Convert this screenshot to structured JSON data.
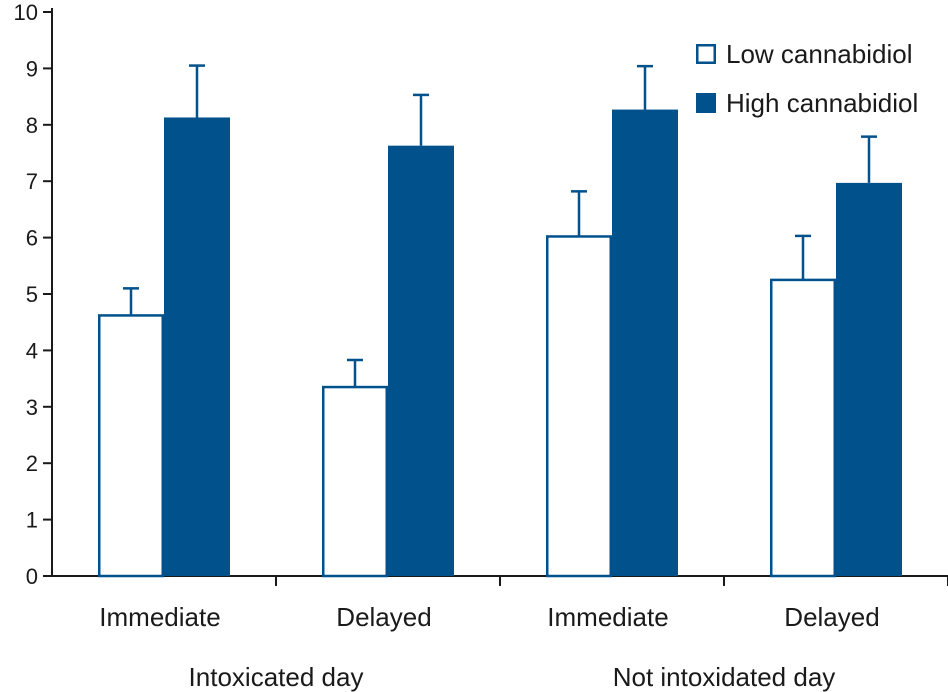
{
  "colors": {
    "dark": "#00518c",
    "axis": "#1a1a1a",
    "background": "#ffffff"
  },
  "chart_data": {
    "type": "bar",
    "title": "",
    "xlabel": "",
    "ylabel": "",
    "ylim": [
      0,
      10
    ],
    "yticks": [
      "0",
      "1",
      "2",
      "3",
      "4",
      "5",
      "6",
      "7",
      "8",
      "9",
      "10"
    ],
    "categories": [
      "Immediate",
      "Delayed",
      "Immediate",
      "Delayed"
    ],
    "groups": [
      {
        "label": "Intoxicated day",
        "category_indices": [
          0,
          1
        ]
      },
      {
        "label": "Not intoxidated day",
        "category_indices": [
          2,
          3
        ]
      }
    ],
    "series": [
      {
        "name": "Low cannabidiol",
        "style": "outline",
        "values": [
          4.62,
          3.35,
          6.02,
          5.25
        ],
        "errors": [
          0.48,
          0.48,
          0.8,
          0.78
        ]
      },
      {
        "name": "High cannabidiol",
        "style": "filled",
        "values": [
          8.13,
          7.63,
          8.27,
          6.97
        ],
        "errors": [
          0.92,
          0.9,
          0.77,
          0.82
        ]
      }
    ],
    "legend_position": "top-right"
  }
}
